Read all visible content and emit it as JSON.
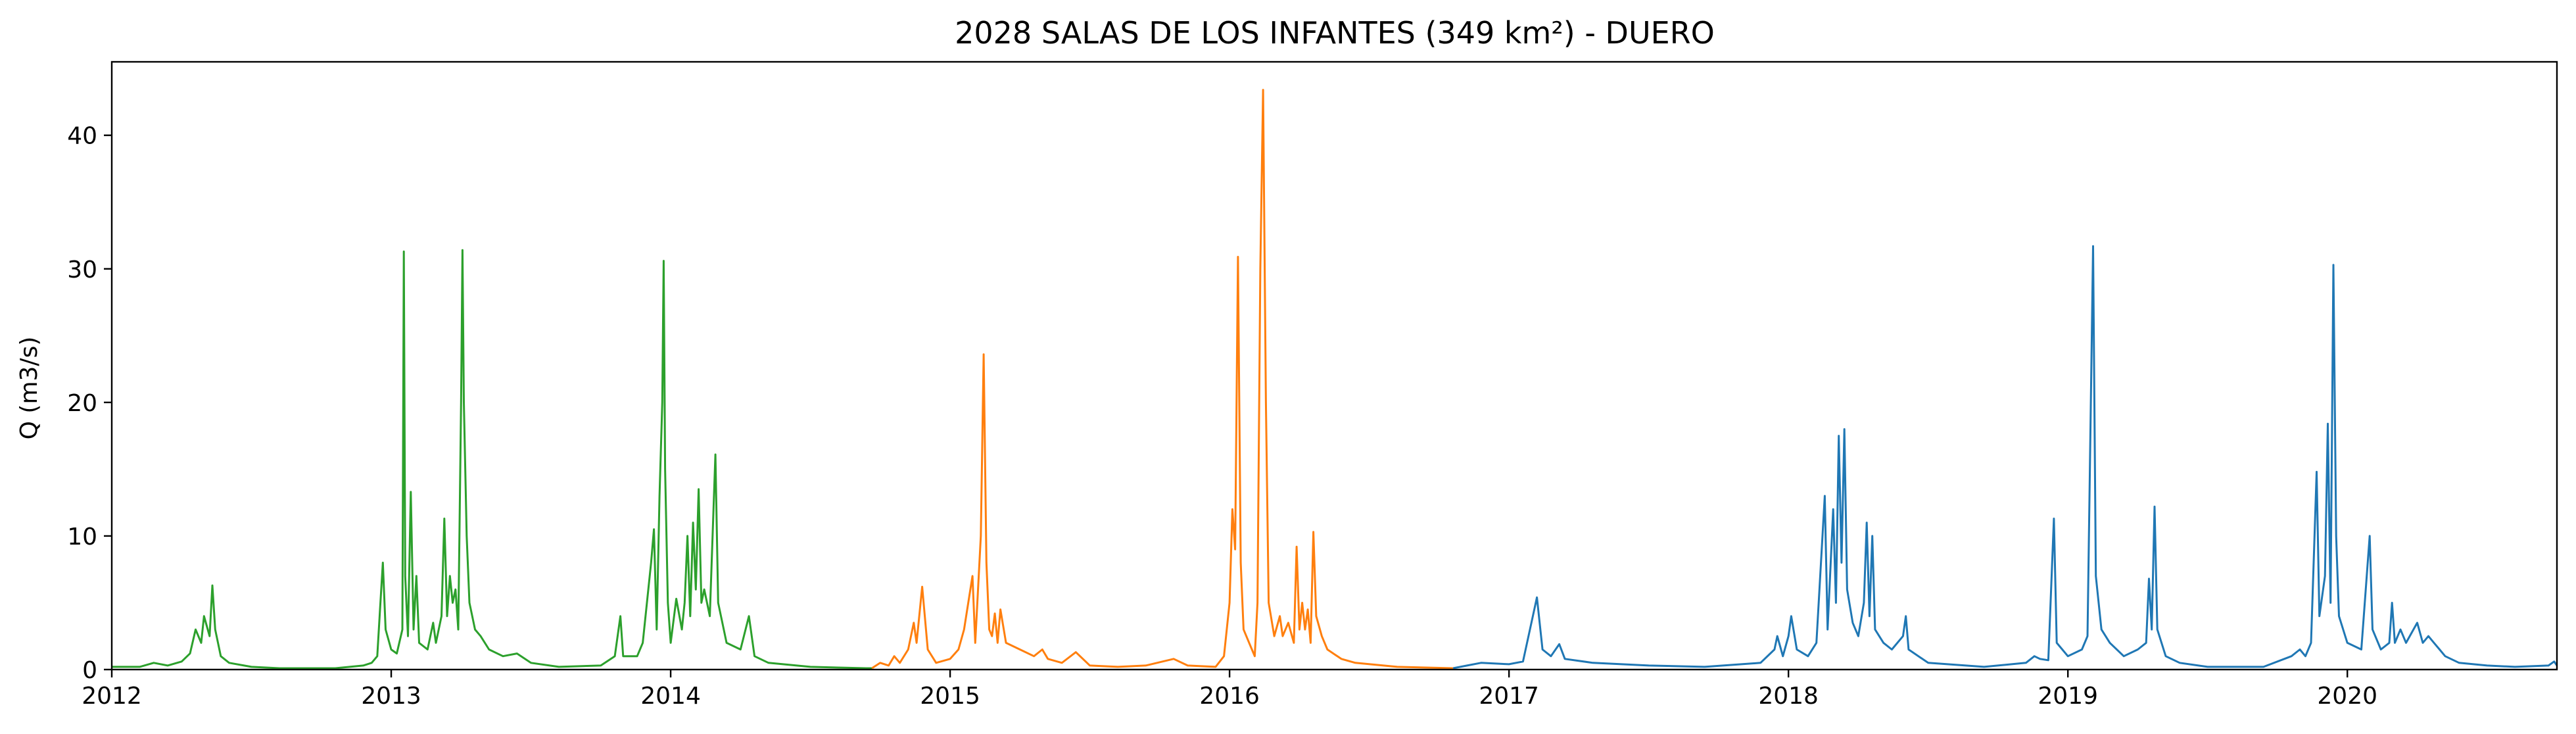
{
  "chart_data": {
    "type": "line",
    "title": "2028 SALAS DE LOS INFANTES (349 km²) - DUERO",
    "xlabel": "",
    "ylabel": "Q (m3/s)",
    "xlim": [
      2012.0,
      2020.75
    ],
    "ylim": [
      0,
      45.5
    ],
    "x_ticks": [
      "2012",
      "2013",
      "2014",
      "2015",
      "2016",
      "2017",
      "2018",
      "2019",
      "2020"
    ],
    "y_ticks": [
      "0",
      "10",
      "20",
      "30",
      "40"
    ],
    "grid": false,
    "legend": "none",
    "series": [
      {
        "color": "#2ca02c",
        "points": [
          [
            2012.0,
            0.2
          ],
          [
            2012.1,
            0.2
          ],
          [
            2012.15,
            0.5
          ],
          [
            2012.2,
            0.3
          ],
          [
            2012.25,
            0.6
          ],
          [
            2012.28,
            1.2
          ],
          [
            2012.3,
            3.0
          ],
          [
            2012.32,
            2.0
          ],
          [
            2012.33,
            4.0
          ],
          [
            2012.35,
            2.5
          ],
          [
            2012.36,
            6.3
          ],
          [
            2012.37,
            3.0
          ],
          [
            2012.39,
            1.0
          ],
          [
            2012.42,
            0.5
          ],
          [
            2012.5,
            0.2
          ],
          [
            2012.6,
            0.1
          ],
          [
            2012.8,
            0.1
          ],
          [
            2012.9,
            0.3
          ],
          [
            2012.93,
            0.5
          ],
          [
            2012.95,
            1.0
          ],
          [
            2012.96,
            4.5
          ],
          [
            2012.97,
            8.0
          ],
          [
            2012.98,
            3.0
          ],
          [
            2013.0,
            1.5
          ],
          [
            2013.02,
            1.2
          ],
          [
            2013.04,
            3.0
          ],
          [
            2013.045,
            31.3
          ],
          [
            2013.05,
            7.0
          ],
          [
            2013.06,
            2.5
          ],
          [
            2013.07,
            13.3
          ],
          [
            2013.08,
            3.0
          ],
          [
            2013.09,
            7.0
          ],
          [
            2013.1,
            2.0
          ],
          [
            2013.13,
            1.5
          ],
          [
            2013.15,
            3.5
          ],
          [
            2013.16,
            2.0
          ],
          [
            2013.18,
            4.0
          ],
          [
            2013.19,
            11.3
          ],
          [
            2013.2,
            4.0
          ],
          [
            2013.21,
            7.0
          ],
          [
            2013.22,
            5.0
          ],
          [
            2013.23,
            6.0
          ],
          [
            2013.24,
            3.0
          ],
          [
            2013.25,
            20.0
          ],
          [
            2013.255,
            31.4
          ],
          [
            2013.26,
            20.0
          ],
          [
            2013.27,
            10.0
          ],
          [
            2013.28,
            5.0
          ],
          [
            2013.3,
            3.0
          ],
          [
            2013.32,
            2.5
          ],
          [
            2013.35,
            1.5
          ],
          [
            2013.4,
            1.0
          ],
          [
            2013.45,
            1.2
          ],
          [
            2013.5,
            0.5
          ],
          [
            2013.6,
            0.2
          ],
          [
            2013.75,
            0.3
          ],
          [
            2013.8,
            1.0
          ],
          [
            2013.82,
            4.0
          ],
          [
            2013.83,
            1.0
          ],
          [
            2013.88,
            1.0
          ],
          [
            2013.9,
            2.0
          ],
          [
            2013.93,
            8.0
          ],
          [
            2013.94,
            10.5
          ],
          [
            2013.95,
            3.0
          ],
          [
            2013.96,
            13.0
          ],
          [
            2013.97,
            20.0
          ],
          [
            2013.975,
            30.6
          ],
          [
            2013.98,
            15.0
          ],
          [
            2013.99,
            5.0
          ],
          [
            2014.0,
            2.0
          ],
          [
            2014.02,
            5.3
          ],
          [
            2014.04,
            3.0
          ],
          [
            2014.05,
            5.0
          ],
          [
            2014.06,
            10.0
          ],
          [
            2014.07,
            4.0
          ],
          [
            2014.08,
            11.0
          ],
          [
            2014.09,
            6.0
          ],
          [
            2014.1,
            13.5
          ],
          [
            2014.11,
            5.0
          ],
          [
            2014.12,
            6.0
          ],
          [
            2014.14,
            4.0
          ],
          [
            2014.16,
            16.1
          ],
          [
            2014.17,
            5.0
          ],
          [
            2014.2,
            2.0
          ],
          [
            2014.25,
            1.5
          ],
          [
            2014.28,
            4.0
          ],
          [
            2014.3,
            1.0
          ],
          [
            2014.35,
            0.5
          ],
          [
            2014.5,
            0.2
          ],
          [
            2014.7,
            0.1
          ],
          [
            2014.72,
            0.1
          ]
        ]
      },
      {
        "color": "#ff7f0e",
        "points": [
          [
            2014.72,
            0.1
          ],
          [
            2014.75,
            0.5
          ],
          [
            2014.78,
            0.3
          ],
          [
            2014.8,
            1.0
          ],
          [
            2014.82,
            0.5
          ],
          [
            2014.85,
            1.5
          ],
          [
            2014.87,
            3.5
          ],
          [
            2014.88,
            2.0
          ],
          [
            2014.9,
            6.2
          ],
          [
            2014.92,
            1.5
          ],
          [
            2014.95,
            0.5
          ],
          [
            2015.0,
            0.8
          ],
          [
            2015.03,
            1.5
          ],
          [
            2015.05,
            3.0
          ],
          [
            2015.08,
            7.0
          ],
          [
            2015.09,
            2.0
          ],
          [
            2015.11,
            10.0
          ],
          [
            2015.12,
            23.6
          ],
          [
            2015.13,
            8.0
          ],
          [
            2015.14,
            3.0
          ],
          [
            2015.15,
            2.5
          ],
          [
            2015.16,
            4.2
          ],
          [
            2015.17,
            2.0
          ],
          [
            2015.18,
            4.5
          ],
          [
            2015.2,
            2.0
          ],
          [
            2015.25,
            1.5
          ],
          [
            2015.3,
            1.0
          ],
          [
            2015.33,
            1.5
          ],
          [
            2015.35,
            0.8
          ],
          [
            2015.4,
            0.5
          ],
          [
            2015.45,
            1.3
          ],
          [
            2015.5,
            0.3
          ],
          [
            2015.6,
            0.2
          ],
          [
            2015.7,
            0.3
          ],
          [
            2015.8,
            0.8
          ],
          [
            2015.85,
            0.3
          ],
          [
            2015.95,
            0.2
          ],
          [
            2015.98,
            1.0
          ],
          [
            2016.0,
            5.0
          ],
          [
            2016.01,
            12.0
          ],
          [
            2016.02,
            9.0
          ],
          [
            2016.03,
            30.9
          ],
          [
            2016.04,
            8.0
          ],
          [
            2016.05,
            3.0
          ],
          [
            2016.07,
            2.0
          ],
          [
            2016.09,
            1.0
          ],
          [
            2016.1,
            5.0
          ],
          [
            2016.11,
            30.0
          ],
          [
            2016.12,
            43.4
          ],
          [
            2016.13,
            20.0
          ],
          [
            2016.14,
            5.0
          ],
          [
            2016.16,
            2.5
          ],
          [
            2016.18,
            4.0
          ],
          [
            2016.19,
            2.5
          ],
          [
            2016.21,
            3.5
          ],
          [
            2016.23,
            2.0
          ],
          [
            2016.24,
            9.2
          ],
          [
            2016.25,
            3.0
          ],
          [
            2016.26,
            5.0
          ],
          [
            2016.27,
            3.0
          ],
          [
            2016.28,
            4.5
          ],
          [
            2016.29,
            2.0
          ],
          [
            2016.3,
            10.3
          ],
          [
            2016.31,
            4.0
          ],
          [
            2016.33,
            2.5
          ],
          [
            2016.35,
            1.5
          ],
          [
            2016.4,
            0.8
          ],
          [
            2016.45,
            0.5
          ],
          [
            2016.6,
            0.2
          ],
          [
            2016.8,
            0.1
          ]
        ]
      },
      {
        "color": "#1f77b4",
        "points": [
          [
            2016.8,
            0.1
          ],
          [
            2016.85,
            0.3
          ],
          [
            2016.9,
            0.5
          ],
          [
            2017.0,
            0.4
          ],
          [
            2017.05,
            0.6
          ],
          [
            2017.1,
            5.4
          ],
          [
            2017.12,
            1.5
          ],
          [
            2017.15,
            1.0
          ],
          [
            2017.18,
            1.9
          ],
          [
            2017.2,
            0.8
          ],
          [
            2017.3,
            0.5
          ],
          [
            2017.5,
            0.3
          ],
          [
            2017.7,
            0.2
          ],
          [
            2017.9,
            0.5
          ],
          [
            2017.95,
            1.5
          ],
          [
            2017.96,
            2.5
          ],
          [
            2017.98,
            1.0
          ],
          [
            2018.0,
            2.5
          ],
          [
            2018.01,
            4.0
          ],
          [
            2018.03,
            1.5
          ],
          [
            2018.07,
            1.0
          ],
          [
            2018.1,
            2.0
          ],
          [
            2018.13,
            13.0
          ],
          [
            2018.14,
            3.0
          ],
          [
            2018.16,
            12.0
          ],
          [
            2018.17,
            5.0
          ],
          [
            2018.18,
            17.5
          ],
          [
            2018.19,
            8.0
          ],
          [
            2018.2,
            18.0
          ],
          [
            2018.21,
            6.0
          ],
          [
            2018.23,
            3.5
          ],
          [
            2018.25,
            2.5
          ],
          [
            2018.27,
            5.0
          ],
          [
            2018.28,
            11.0
          ],
          [
            2018.29,
            4.0
          ],
          [
            2018.3,
            10.0
          ],
          [
            2018.31,
            3.0
          ],
          [
            2018.34,
            2.0
          ],
          [
            2018.37,
            1.5
          ],
          [
            2018.41,
            2.5
          ],
          [
            2018.42,
            4.0
          ],
          [
            2018.43,
            1.5
          ],
          [
            2018.5,
            0.5
          ],
          [
            2018.7,
            0.2
          ],
          [
            2018.85,
            0.5
          ],
          [
            2018.88,
            1.0
          ],
          [
            2018.9,
            0.8
          ],
          [
            2018.93,
            0.7
          ],
          [
            2018.95,
            11.3
          ],
          [
            2018.96,
            2.0
          ],
          [
            2019.0,
            1.0
          ],
          [
            2019.05,
            1.5
          ],
          [
            2019.07,
            2.5
          ],
          [
            2019.09,
            31.7
          ],
          [
            2019.1,
            7.0
          ],
          [
            2019.12,
            3.0
          ],
          [
            2019.15,
            2.0
          ],
          [
            2019.2,
            1.0
          ],
          [
            2019.25,
            1.5
          ],
          [
            2019.28,
            2.0
          ],
          [
            2019.29,
            6.8
          ],
          [
            2019.3,
            3.0
          ],
          [
            2019.31,
            12.2
          ],
          [
            2019.32,
            3.0
          ],
          [
            2019.35,
            1.0
          ],
          [
            2019.4,
            0.5
          ],
          [
            2019.5,
            0.2
          ],
          [
            2019.7,
            0.2
          ],
          [
            2019.8,
            1.0
          ],
          [
            2019.83,
            1.5
          ],
          [
            2019.85,
            1.0
          ],
          [
            2019.87,
            2.0
          ],
          [
            2019.89,
            14.8
          ],
          [
            2019.9,
            4.0
          ],
          [
            2019.92,
            7.0
          ],
          [
            2019.93,
            18.4
          ],
          [
            2019.94,
            5.0
          ],
          [
            2019.95,
            30.3
          ],
          [
            2019.96,
            10.0
          ],
          [
            2019.97,
            4.0
          ],
          [
            2020.0,
            2.0
          ],
          [
            2020.05,
            1.5
          ],
          [
            2020.08,
            10.0
          ],
          [
            2020.09,
            3.0
          ],
          [
            2020.12,
            1.5
          ],
          [
            2020.15,
            2.0
          ],
          [
            2020.16,
            5.0
          ],
          [
            2020.17,
            2.0
          ],
          [
            2020.19,
            3.0
          ],
          [
            2020.21,
            2.0
          ],
          [
            2020.25,
            3.5
          ],
          [
            2020.27,
            2.0
          ],
          [
            2020.29,
            2.5
          ],
          [
            2020.31,
            2.0
          ],
          [
            2020.33,
            1.5
          ],
          [
            2020.35,
            1.0
          ],
          [
            2020.4,
            0.5
          ],
          [
            2020.5,
            0.3
          ],
          [
            2020.6,
            0.2
          ],
          [
            2020.72,
            0.3
          ],
          [
            2020.74,
            0.6
          ],
          [
            2020.75,
            0.3
          ]
        ]
      }
    ]
  }
}
